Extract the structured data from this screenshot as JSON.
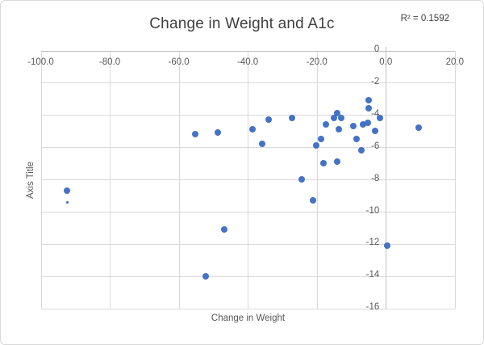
{
  "chart": {
    "title": "Change in Weight and A1c",
    "r_squared_label": "R² = 0.1592",
    "colors": {
      "marker": "#4472C4",
      "gridline": "#D9D9D9",
      "axis_line": "#BFBFBF",
      "tick_text": "#595959",
      "title_text": "#404040",
      "border": "#D9D9D9"
    }
  },
  "chart_data": {
    "type": "scatter",
    "title": "Change in Weight and A1c",
    "annotation": "R² = 0.1592",
    "xlabel": "Change in Weight",
    "ylabel": "Axis Title",
    "xlim": [
      -100,
      20
    ],
    "ylim": [
      -16,
      0
    ],
    "x_tick_labels": [
      "-100.0",
      "-80.0",
      "-60.0",
      "-40.0",
      "-20.0",
      "0.0",
      "20.0"
    ],
    "x_tick_values": [
      -100,
      -80,
      -60,
      -40,
      -20,
      0,
      20
    ],
    "y_tick_labels": [
      "0",
      "-2",
      "-4",
      "-6",
      "-8",
      "-10",
      "-12",
      "-14",
      "-16"
    ],
    "y_tick_values": [
      0,
      -2,
      -4,
      -6,
      -8,
      -10,
      -12,
      -14,
      -16
    ],
    "grid": true,
    "legend": "none",
    "points": [
      [
        -92.4,
        -8.7
      ],
      [
        -55.2,
        -5.2
      ],
      [
        -52.3,
        -14.0
      ],
      [
        -48.7,
        -5.1
      ],
      [
        -46.8,
        -11.1
      ],
      [
        -38.6,
        -4.9
      ],
      [
        -35.9,
        -5.8
      ],
      [
        -34.0,
        -4.3
      ],
      [
        -27.3,
        -4.2
      ],
      [
        -24.4,
        -8.0
      ],
      [
        -21.0,
        -9.3
      ],
      [
        -20.2,
        -5.9
      ],
      [
        -18.8,
        -5.5
      ],
      [
        -18.1,
        -7.0
      ],
      [
        -17.4,
        -4.6
      ],
      [
        -15.1,
        -4.2
      ],
      [
        -14.2,
        -6.9
      ],
      [
        -14.1,
        -3.9
      ],
      [
        -13.6,
        -4.9
      ],
      [
        -13.0,
        -4.2
      ],
      [
        -9.5,
        -4.7
      ],
      [
        -8.6,
        -5.5
      ],
      [
        -7.2,
        -6.2
      ],
      [
        -6.6,
        -4.6
      ],
      [
        -5.1,
        -4.5
      ],
      [
        -5.0,
        -3.6
      ],
      [
        -4.9,
        -3.1
      ],
      [
        -3.1,
        -5.0
      ],
      [
        -1.8,
        -4.2
      ],
      [
        0.4,
        -12.1
      ],
      [
        9.4,
        -4.8
      ]
    ],
    "small_point": [
      -92.4,
      -9.4
    ]
  }
}
